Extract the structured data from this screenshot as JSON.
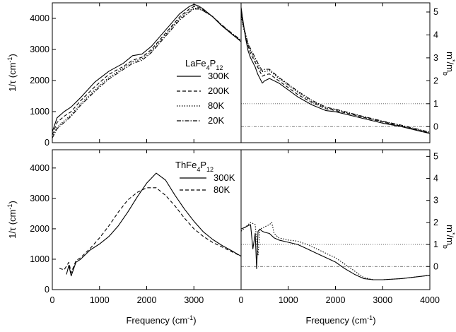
{
  "figure": {
    "xlabel_left": "Frequency (cm",
    "xlabel_right": "Frequency (cm",
    "xlabel_sup": "-1",
    "xlabel_close": ")"
  },
  "chart_data": [
    {
      "type": "line",
      "panel": "top-left",
      "ylabel": "1/τ (cm",
      "ylabel_sup": "-1",
      "ylabel_close": ")",
      "xlim": [
        0,
        4000
      ],
      "ylim": [
        0,
        4500
      ],
      "xticks": [
        "0",
        "1000",
        "2000",
        "3000"
      ],
      "yticks": [
        "0",
        "1000",
        "2000",
        "3000",
        "4000"
      ],
      "legend": {
        "material": "LaFe",
        "sub1": "4",
        "mid": "P",
        "sub2": "12",
        "position": "center-right"
      },
      "series": [
        {
          "name": "300K",
          "style": "solid",
          "x": [
            0,
            100,
            250,
            400,
            600,
            900,
            1200,
            1500,
            1700,
            1900,
            2100,
            2300,
            2500,
            2700,
            2900,
            3000,
            3100,
            3200,
            3400,
            3600,
            3800,
            4000
          ],
          "y": [
            350,
            800,
            1000,
            1150,
            1450,
            1950,
            2300,
            2550,
            2800,
            2850,
            3100,
            3450,
            3800,
            4150,
            4380,
            4450,
            4400,
            4300,
            4050,
            3750,
            3500,
            3250
          ]
        },
        {
          "name": "200K",
          "style": "dashed",
          "x": [
            0,
            100,
            250,
            400,
            600,
            900,
            1200,
            1500,
            1700,
            1900,
            2100,
            2300,
            2500,
            2700,
            2900,
            3000,
            3100,
            3200,
            3400,
            3600,
            3800,
            4000
          ],
          "y": [
            250,
            650,
            850,
            1000,
            1350,
            1800,
            2200,
            2450,
            2650,
            2750,
            3000,
            3350,
            3700,
            4050,
            4300,
            4380,
            4360,
            4280,
            4050,
            3750,
            3500,
            3270
          ]
        },
        {
          "name": "80K",
          "style": "dotted",
          "x": [
            0,
            100,
            250,
            400,
            600,
            900,
            1200,
            1500,
            1700,
            1900,
            2100,
            2300,
            2500,
            2700,
            2900,
            3000,
            3100,
            3200,
            3400,
            3600,
            3800,
            4000
          ],
          "y": [
            180,
            500,
            700,
            900,
            1250,
            1700,
            2100,
            2400,
            2600,
            2700,
            2950,
            3300,
            3650,
            4000,
            4250,
            4330,
            4320,
            4250,
            4050,
            3760,
            3510,
            3280
          ]
        },
        {
          "name": "20K",
          "style": "dashdot",
          "x": [
            0,
            100,
            250,
            400,
            600,
            900,
            1200,
            1500,
            1700,
            1900,
            2100,
            2300,
            2500,
            2700,
            2900,
            3000,
            3100,
            3200,
            3400,
            3600,
            3800,
            4000
          ],
          "y": [
            150,
            450,
            650,
            850,
            1200,
            1650,
            2050,
            2350,
            2550,
            2650,
            2900,
            3250,
            3600,
            3950,
            4200,
            4300,
            4300,
            4240,
            4060,
            3780,
            3530,
            3300
          ]
        }
      ]
    },
    {
      "type": "line",
      "panel": "top-right",
      "ylabel": "m",
      "ylabel_sup": "*",
      "ylabel_mid": "/m",
      "ylabel_sub": "b",
      "xlim": [
        0,
        4000
      ],
      "ylim": [
        -0.7,
        5.4
      ],
      "yticks": [
        "0",
        "1",
        "2",
        "3",
        "4",
        "5"
      ],
      "reference_lines": [
        1,
        0
      ],
      "series": [
        {
          "name": "300K",
          "style": "solid",
          "x": [
            0,
            50,
            100,
            150,
            200,
            250,
            300,
            350,
            400,
            450,
            500,
            600,
            800,
            1000,
            1200,
            1500,
            1800,
            2000,
            2300,
            2600,
            3000,
            3400,
            3800,
            4000
          ],
          "y": [
            5.2,
            4.5,
            3.8,
            3.3,
            3.0,
            2.8,
            2.6,
            2.3,
            2.1,
            1.9,
            2.0,
            2.1,
            1.9,
            1.6,
            1.3,
            0.95,
            0.7,
            0.65,
            0.5,
            0.35,
            0.15,
            0.0,
            -0.2,
            -0.3
          ]
        },
        {
          "name": "200K",
          "style": "dashed",
          "x": [
            0,
            50,
            100,
            150,
            200,
            250,
            300,
            350,
            400,
            450,
            500,
            600,
            800,
            1000,
            1200,
            1500,
            1800,
            2000,
            2300,
            2600,
            3000,
            3400,
            3800,
            4000
          ],
          "y": [
            5.0,
            4.4,
            3.9,
            3.5,
            3.2,
            3.0,
            2.8,
            2.6,
            2.4,
            2.2,
            2.25,
            2.3,
            2.0,
            1.7,
            1.4,
            1.05,
            0.78,
            0.7,
            0.55,
            0.4,
            0.2,
            0.02,
            -0.18,
            -0.28
          ]
        },
        {
          "name": "80K",
          "style": "dotted",
          "x": [
            0,
            50,
            100,
            150,
            200,
            250,
            300,
            350,
            400,
            450,
            500,
            600,
            800,
            1000,
            1200,
            1500,
            1800,
            2000,
            2300,
            2600,
            3000,
            3400,
            3800,
            4000
          ],
          "y": [
            4.8,
            4.3,
            3.9,
            3.6,
            3.3,
            3.1,
            2.9,
            2.7,
            2.5,
            2.4,
            2.4,
            2.45,
            2.1,
            1.8,
            1.5,
            1.1,
            0.82,
            0.74,
            0.58,
            0.42,
            0.22,
            0.04,
            -0.16,
            -0.26
          ]
        },
        {
          "name": "20K",
          "style": "dashdot",
          "x": [
            0,
            50,
            100,
            150,
            200,
            250,
            300,
            350,
            400,
            450,
            500,
            600,
            800,
            1000,
            1200,
            1500,
            1800,
            2000,
            2300,
            2600,
            3000,
            3400,
            3800,
            4000
          ],
          "y": [
            4.9,
            4.4,
            4.0,
            3.6,
            3.4,
            3.2,
            3.0,
            2.8,
            2.6,
            2.45,
            2.5,
            2.5,
            2.15,
            1.85,
            1.55,
            1.15,
            0.85,
            0.76,
            0.6,
            0.44,
            0.24,
            0.06,
            -0.14,
            -0.24
          ]
        }
      ]
    },
    {
      "type": "line",
      "panel": "bottom-left",
      "ylabel": "1/τ (cm",
      "ylabel_sup": "-1",
      "ylabel_close": ")",
      "xlim": [
        0,
        4000
      ],
      "ylim": [
        0,
        4600
      ],
      "xticks": [
        "0",
        "1000",
        "2000",
        "3000"
      ],
      "yticks": [
        "0",
        "1000",
        "2000",
        "3000",
        "4000"
      ],
      "legend": {
        "material": "ThFe",
        "sub1": "4",
        "mid": "P",
        "sub2": "12",
        "position": "top-right"
      },
      "series": [
        {
          "name": "300K",
          "style": "solid",
          "x": [
            300,
            350,
            400,
            500,
            600,
            800,
            1000,
            1200,
            1400,
            1600,
            1800,
            2000,
            2200,
            2400,
            2600,
            2800,
            3000,
            3200,
            3400,
            3600,
            3800,
            4000
          ],
          "y": [
            500,
            800,
            450,
            900,
            1000,
            1300,
            1500,
            1750,
            2100,
            2550,
            3050,
            3500,
            3830,
            3600,
            3100,
            2650,
            2250,
            1900,
            1650,
            1450,
            1280,
            1100
          ]
        },
        {
          "name": "80K",
          "style": "dashed",
          "x": [
            150,
            250,
            350,
            400,
            500,
            600,
            800,
            1000,
            1200,
            1400,
            1600,
            1800,
            2000,
            2200,
            2400,
            2600,
            2800,
            3000,
            3200,
            3400,
            3600,
            3800,
            4000
          ],
          "y": [
            700,
            650,
            900,
            550,
            950,
            1050,
            1350,
            1700,
            2100,
            2550,
            2950,
            3200,
            3350,
            3350,
            3100,
            2750,
            2350,
            2000,
            1750,
            1550,
            1400,
            1250,
            1100
          ]
        }
      ]
    },
    {
      "type": "line",
      "panel": "bottom-right",
      "ylabel": "m",
      "ylabel_sup": "*",
      "ylabel_mid": "/m",
      "ylabel_sub": "b",
      "xlim": [
        0,
        4000
      ],
      "ylim": [
        -1.05,
        5.3
      ],
      "xticks": [
        "0",
        "1000",
        "2000",
        "3000",
        "4000"
      ],
      "yticks": [
        "0",
        "1",
        "2",
        "3",
        "4",
        "5"
      ],
      "reference_lines": [
        1,
        0
      ],
      "series": [
        {
          "name": "300K",
          "style": "solid",
          "x": [
            0,
            100,
            200,
            250,
            300,
            330,
            360,
            400,
            450,
            500,
            600,
            700,
            800,
            1000,
            1200,
            1400,
            1600,
            1800,
            2000,
            2200,
            2400,
            2600,
            2800,
            3000,
            3400,
            3800,
            4000
          ],
          "y": [
            1.7,
            1.8,
            1.9,
            0.8,
            1.5,
            -0.1,
            1.6,
            1.7,
            1.6,
            1.55,
            1.5,
            1.3,
            1.2,
            1.1,
            1.0,
            0.8,
            0.6,
            0.4,
            0.2,
            -0.1,
            -0.35,
            -0.55,
            -0.6,
            -0.6,
            -0.55,
            -0.45,
            -0.4
          ]
        },
        {
          "name": "80K",
          "style": "dotted",
          "x": [
            0,
            100,
            200,
            300,
            360,
            400,
            500,
            600,
            650,
            700,
            800,
            1000,
            1200,
            1400,
            1600,
            1800,
            2000,
            2200,
            2400,
            2600,
            2800,
            3000,
            3400,
            3800,
            4000
          ],
          "y": [
            1.6,
            1.8,
            2.0,
            1.9,
            0.5,
            1.7,
            1.8,
            1.9,
            2.0,
            1.5,
            1.3,
            1.2,
            1.15,
            1.0,
            0.8,
            0.6,
            0.4,
            0.1,
            -0.2,
            -0.5,
            -0.6,
            -0.6,
            -0.55,
            -0.45,
            -0.4
          ]
        }
      ]
    }
  ]
}
